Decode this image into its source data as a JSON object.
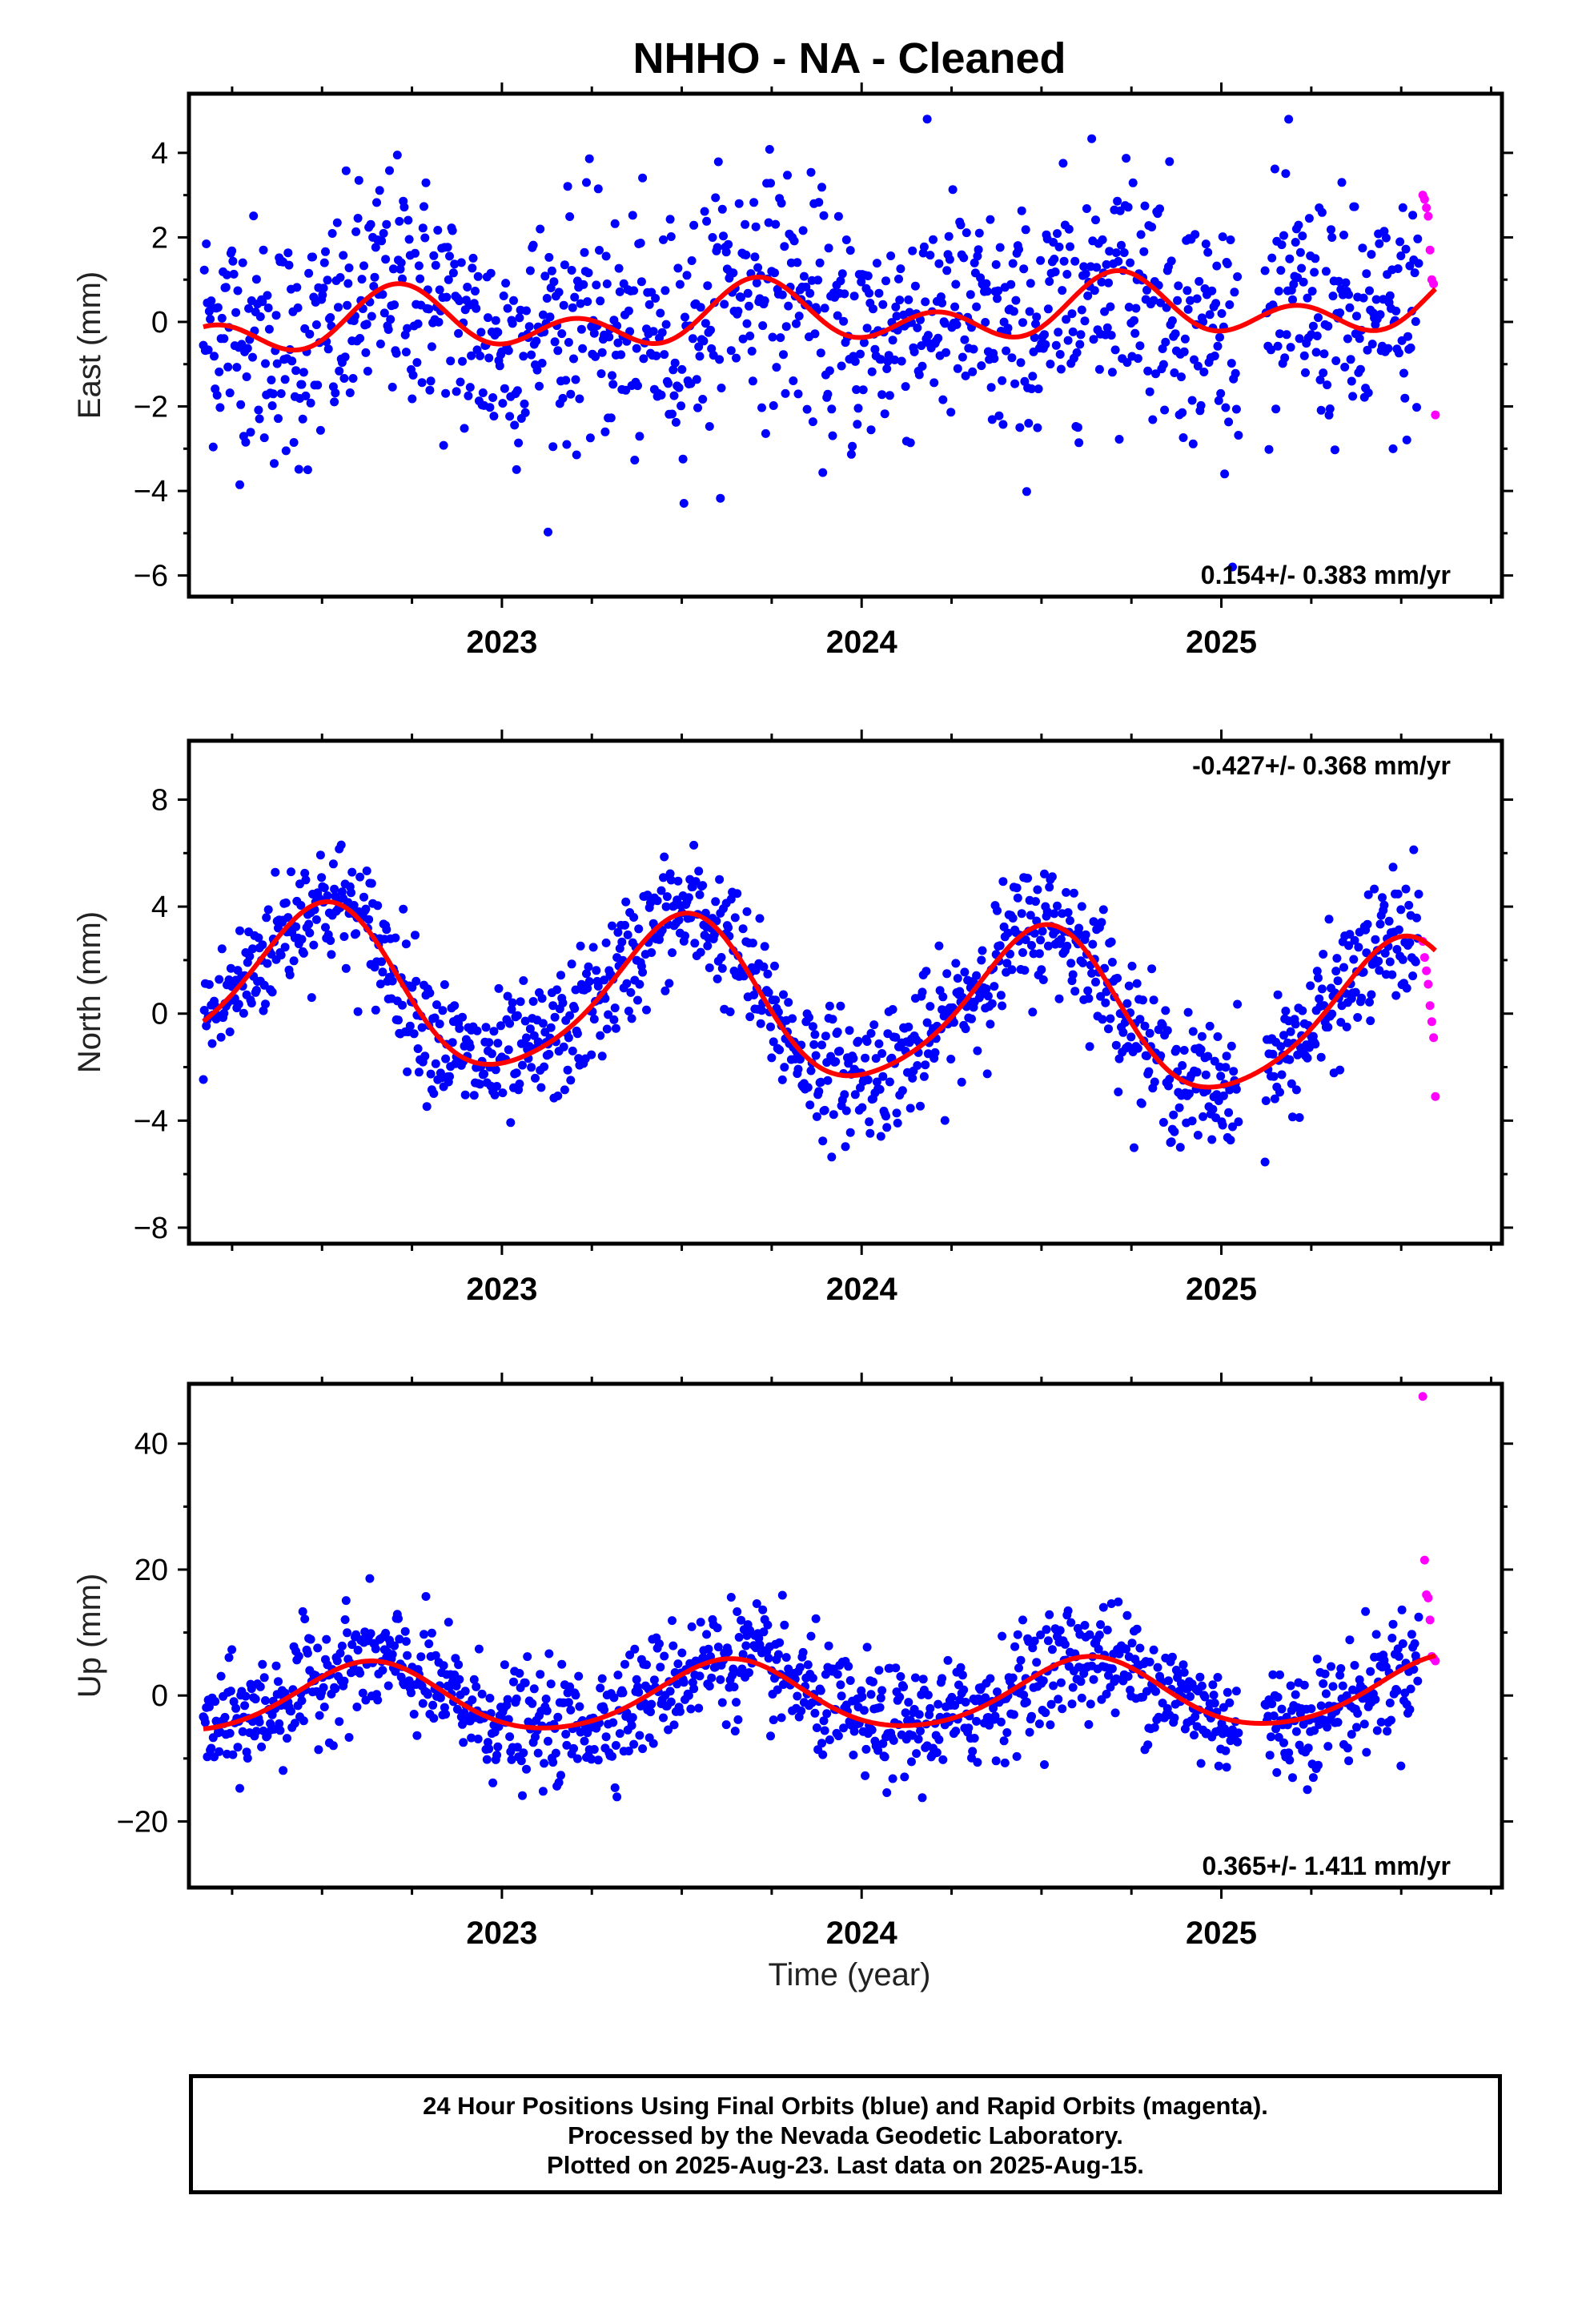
{
  "title": "NHHO  - NA - Cleaned",
  "x_axis_title": "Time (year)",
  "footer": {
    "line1": "24 Hour Positions Using Final Orbits (blue) and Rapid Orbits (magenta).",
    "line2": "Processed by the Nevada Geodetic Laboratory.",
    "line3": "Plotted on 2025-Aug-23. Last data on 2025-Aug-15."
  },
  "colors": {
    "final_orbits": "#0000ff",
    "rapid_orbits": "#ff00ff",
    "model_fit": "#ff0000",
    "frame": "#000000"
  },
  "chart_data": [
    {
      "type": "scatter",
      "ylabel": "East (mm)",
      "rate_label": "0.154+/- 0.383 mm/yr",
      "rate_position": "bottom-right",
      "xlim": [
        2022.13,
        2025.78
      ],
      "ylim": [
        -6.5,
        5.4
      ],
      "yticks": [
        -6,
        -4,
        -2,
        0,
        2,
        4
      ],
      "xticks": [
        2023,
        2024,
        2025
      ],
      "grid": false,
      "model": {
        "mean": 0.154,
        "rate_per_yr": 0.154,
        "annual_amplitude": 0.45,
        "annual_peak_year_fraction": 0.72,
        "semiannual_amplitude": 0.5,
        "semiannual_peak_year_fraction": 0.21
      },
      "final_orbits": {
        "x_start": 2022.17,
        "x_end": 2025.55,
        "noise_sd": 1.4,
        "gaps": [
          [
            2025.05,
            2025.12
          ]
        ]
      },
      "rapid_orbits": {
        "x": [
          2025.56,
          2025.565,
          2025.57,
          2025.575,
          2025.58,
          2025.585,
          2025.59,
          2025.595
        ],
        "y": [
          3.0,
          2.9,
          2.7,
          2.5,
          1.7,
          1.0,
          0.9,
          -2.2
        ]
      }
    },
    {
      "type": "scatter",
      "ylabel": "North (mm)",
      "rate_label": "-0.427+/- 0.368 mm/yr",
      "rate_position": "top-right",
      "xlim": [
        2022.13,
        2025.78
      ],
      "ylim": [
        -8.6,
        10.2
      ],
      "yticks": [
        -8,
        -4,
        0,
        4,
        8
      ],
      "xticks": [
        2023,
        2024,
        2025
      ],
      "grid": false,
      "model": {
        "mean": 0.3,
        "rate_per_yr": -0.427,
        "annual_amplitude": 2.9,
        "annual_peak_year_fraction": 0.5,
        "semiannual_amplitude": 0.4,
        "semiannual_peak_year_fraction": 0.05
      },
      "final_orbits": {
        "x_start": 2022.17,
        "x_end": 2025.55,
        "noise_sd": 1.2,
        "gaps": [
          [
            2025.05,
            2025.12
          ]
        ]
      },
      "rapid_orbits": {
        "x": [
          2025.56,
          2025.565,
          2025.57,
          2025.575,
          2025.58,
          2025.585,
          2025.59,
          2025.595
        ],
        "y": [
          2.7,
          2.1,
          1.6,
          1.1,
          0.3,
          -0.3,
          -0.9,
          -3.1
        ]
      }
    },
    {
      "type": "scatter",
      "ylabel": "Up (mm)",
      "rate_label": "0.365+/- 1.411 mm/yr",
      "rate_position": "bottom-right",
      "xlim": [
        2022.13,
        2025.78
      ],
      "ylim": [
        -30.5,
        49.5
      ],
      "yticks": [
        -20,
        0,
        20,
        40
      ],
      "xticks": [
        2023,
        2024,
        2025
      ],
      "grid": false,
      "model": {
        "mean": 0.0,
        "rate_per_yr": 0.365,
        "annual_amplitude": 5.4,
        "annual_peak_year_fraction": 0.63,
        "semiannual_amplitude": 0.6,
        "semiannual_peak_year_fraction": 0.15
      },
      "final_orbits": {
        "x_start": 2022.17,
        "x_end": 2025.55,
        "noise_sd": 4.5,
        "gaps": [
          [
            2025.05,
            2025.12
          ]
        ]
      },
      "rapid_orbits": {
        "x": [
          2025.56,
          2025.565,
          2025.57,
          2025.575,
          2025.58,
          2025.585,
          2025.59,
          2025.595
        ],
        "y": [
          47.5,
          21.5,
          16.0,
          15.5,
          12.0,
          6.2,
          5.9,
          5.5
        ]
      }
    }
  ]
}
